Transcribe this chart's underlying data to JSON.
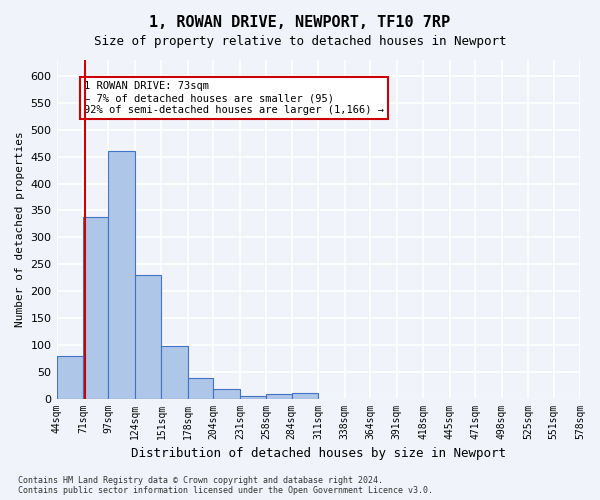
{
  "title": "1, ROWAN DRIVE, NEWPORT, TF10 7RP",
  "subtitle": "Size of property relative to detached houses in Newport",
  "xlabel": "Distribution of detached houses by size in Newport",
  "ylabel": "Number of detached properties",
  "bar_color": "#aec6e8",
  "bar_edge_color": "#4472c4",
  "bar_heights": [
    80,
    338,
    460,
    230,
    98,
    38,
    18,
    5,
    8,
    10,
    0,
    0,
    0,
    0,
    0,
    0,
    0,
    0,
    0,
    0
  ],
  "bin_edges": [
    44,
    71,
    97,
    124,
    151,
    178,
    204,
    231,
    258,
    284,
    311,
    338,
    364,
    391,
    418,
    445,
    471,
    498,
    525,
    551,
    578
  ],
  "x_tick_labels": [
    "44sqm",
    "71sqm",
    "97sqm",
    "124sqm",
    "151sqm",
    "178sqm",
    "204sqm",
    "231sqm",
    "258sqm",
    "284sqm",
    "311sqm",
    "338sqm",
    "364sqm",
    "391sqm",
    "418sqm",
    "445sqm",
    "471sqm",
    "498sqm",
    "525sqm",
    "551sqm",
    "578sqm"
  ],
  "red_line_x": 73,
  "annotation_text": "1 ROWAN DRIVE: 73sqm\n← 7% of detached houses are smaller (95)\n92% of semi-detached houses are larger (1,166) →",
  "annotation_box_color": "#ffffff",
  "annotation_box_edge_color": "#cc0000",
  "ylim": [
    0,
    630
  ],
  "yticks": [
    0,
    50,
    100,
    150,
    200,
    250,
    300,
    350,
    400,
    450,
    500,
    550,
    600
  ],
  "background_color": "#f0f4fa",
  "grid_color": "#ffffff",
  "footnote": "Contains HM Land Registry data © Crown copyright and database right 2024.\nContains public sector information licensed under the Open Government Licence v3.0."
}
